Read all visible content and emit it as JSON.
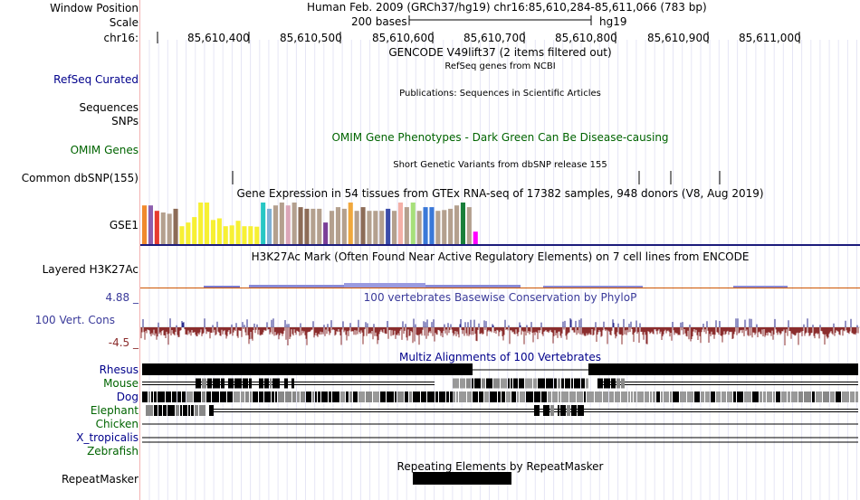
{
  "header": {
    "window_position_label": "Window Position",
    "window_position_value": "Human Feb. 2009 (GRCh37/hg19)   chr16:85,610,284-85,611,066 (783 bp)",
    "scale_label": "Scale",
    "scale_bar_label": "200 bases",
    "assembly": "hg19",
    "chrom_label": "chr16:",
    "ticks": [
      "85,610,400",
      "85,610,500",
      "85,610,600",
      "85,610,700",
      "85,610,800",
      "85,610,900",
      "85,611,000"
    ]
  },
  "tracks": {
    "gencode_title": "GENCODE V49lift37 (2 items filtered out)",
    "refseq_label": "RefSeq Curated",
    "refseq_title": "RefSeq genes from NCBI",
    "publications_title": "Publications: Sequences in Scientific Articles",
    "sequences_label": "Sequences",
    "snps_label": "SNPs",
    "omim_label": "OMIM Genes",
    "omim_title": "OMIM Gene Phenotypes - Dark Green Can Be Disease-causing",
    "dbsnp_label": "Common dbSNP(155)",
    "dbsnp_title": "Short Genetic Variants from dbSNP release 155",
    "gtex_title": "Gene Expression in 54 tissues from GTEx RNA-seq of 17382 samples, 948 donors (V8, Aug 2019)",
    "gtex_gene_label": "GSE1",
    "h3k27ac_label": "Layered H3K27Ac",
    "h3k27ac_title": "H3K27Ac Mark (Often Found Near Active Regulatory Elements) on 7 cell lines from ENCODE",
    "cons_label": "100 Vert. Cons",
    "cons_max": "4.88 _",
    "cons_min": "-4.5 _",
    "cons_title": "100 vertebrates Basewise Conservation by PhyloP",
    "multiz_title": "Multiz Alignments of 100 Vertebrates",
    "species": [
      "Rhesus",
      "Mouse",
      "Dog",
      "Elephant",
      "Chicken",
      "X_tropicalis",
      "Zebrafish"
    ],
    "repeatmasker_label": "RepeatMasker",
    "repeatmasker_title": "Repeating Elements by RepeatMasker"
  },
  "colors": {
    "navy": "#00008b",
    "dark_green": "#006400",
    "cons_pos": "#2a2a8c",
    "cons_neg": "#8b2d2d",
    "cons_label": "#3a3a9a",
    "gridline": "#e6e6f5",
    "left_edge": "#f3b2b2"
  },
  "gtex_bar_colors": [
    "#f18a2d",
    "#8d5fae",
    "#e63b2e",
    "#b4a08e",
    "#b4a08e",
    "#8d6c57",
    "#f7f033",
    "#f7f033",
    "#f7f033",
    "#f7f033",
    "#f7f033",
    "#f7f033",
    "#f7f033",
    "#f7f033",
    "#f7f033",
    "#f7f033",
    "#f7f033",
    "#f7f033",
    "#f7f033",
    "#27c7c4",
    "#7fb0d6",
    "#b4a08e",
    "#b4a08e",
    "#dba6b8",
    "#b4a08e",
    "#8d6c57",
    "#8d6c57",
    "#b4a08e",
    "#b4a08e",
    "#7b3e98",
    "#b4a08e",
    "#b4a08e",
    "#b4a08e",
    "#f0a83d",
    "#b4a08e",
    "#8d6c57",
    "#b4a08e",
    "#b4a08e",
    "#b4a08e",
    "#3b4ca9",
    "#b4a08e",
    "#f4b0a7",
    "#b4a08e",
    "#a7e07a",
    "#b4a08e",
    "#3a78d8",
    "#3a78d8",
    "#b4a08e",
    "#b4a08e",
    "#b4a08e",
    "#b4a08e",
    "#1a7f3a",
    "#b4a08e",
    "#ff00ff"
  ],
  "gtex_values": [
    0.93,
    0.93,
    0.8,
    0.76,
    0.73,
    0.85,
    0.43,
    0.52,
    0.65,
    1.0,
    1.0,
    0.58,
    0.62,
    0.43,
    0.45,
    0.56,
    0.43,
    0.43,
    0.42,
    1.0,
    0.85,
    0.93,
    1.0,
    0.93,
    1.0,
    0.89,
    0.85,
    0.85,
    0.85,
    0.52,
    0.8,
    0.89,
    0.85,
    1.0,
    0.8,
    0.89,
    0.8,
    0.8,
    0.8,
    0.85,
    0.8,
    1.0,
    0.89,
    1.0,
    0.8,
    0.89,
    0.89,
    0.8,
    0.82,
    0.85,
    0.93,
    1.0,
    0.89,
    0.3
  ]
}
